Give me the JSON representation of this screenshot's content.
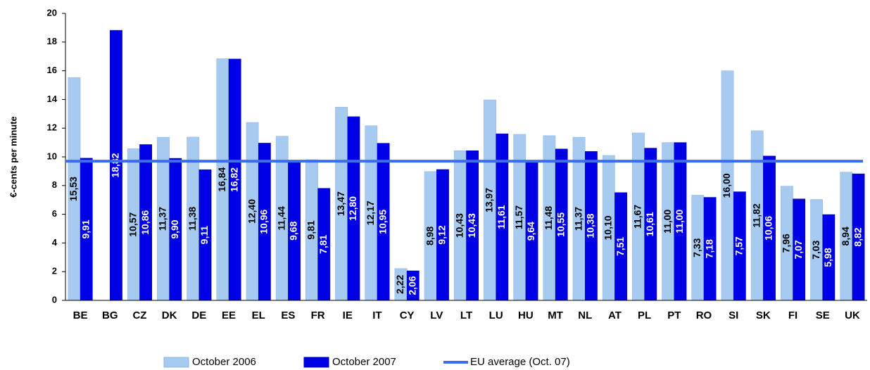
{
  "chart_data": {
    "type": "bar",
    "y_label": "€-cents per minute",
    "categories": [
      "BE",
      "BG",
      "CZ",
      "DK",
      "DE",
      "EE",
      "EL",
      "ES",
      "FR",
      "IE",
      "IT",
      "CY",
      "LV",
      "LT",
      "LU",
      "HU",
      "MT",
      "NL",
      "AT",
      "PL",
      "PT",
      "RO",
      "SI",
      "SK",
      "FI",
      "SE",
      "UK"
    ],
    "series": [
      {
        "name": "October 2006",
        "color": "#a6caf0",
        "values": [
          15.53,
          null,
          10.57,
          11.37,
          11.38,
          16.84,
          12.4,
          11.44,
          9.81,
          13.47,
          12.17,
          2.22,
          8.98,
          10.43,
          13.97,
          11.57,
          11.48,
          11.37,
          10.1,
          11.67,
          11.0,
          7.33,
          16.0,
          11.82,
          7.96,
          7.03,
          8.94
        ],
        "value_labels": [
          "15,53",
          null,
          "10,57",
          "11,37",
          "11,38",
          "16,84",
          "12,40",
          "11,44",
          "9,81",
          "13,47",
          "12,17",
          "2,22",
          "8,98",
          "10,43",
          "13,97",
          "11,57",
          "11,48",
          "11,37",
          "10,10",
          "11,67",
          "11,00",
          "7,33",
          "16,00",
          "11,82",
          "7,96",
          "7,03",
          "8,94"
        ]
      },
      {
        "name": "October 2007",
        "color": "#0000e6",
        "values": [
          9.91,
          18.82,
          10.86,
          9.9,
          9.11,
          16.82,
          10.96,
          9.68,
          7.81,
          12.8,
          10.95,
          2.06,
          9.12,
          10.43,
          11.61,
          9.64,
          10.55,
          10.38,
          7.51,
          10.61,
          11.0,
          7.18,
          7.57,
          10.06,
          7.07,
          5.98,
          8.82
        ],
        "value_labels": [
          "9,91",
          "18,82",
          "10,86",
          "9,90",
          "9,11",
          "16,82",
          "10,96",
          "9,68",
          "7,81",
          "12,80",
          "10,95",
          "2,06",
          "9,12",
          "10,43",
          "11,61",
          "9,64",
          "10,55",
          "10,38",
          "7,51",
          "10,61",
          "11,00",
          "7,18",
          "7,57",
          "10,06",
          "7,07",
          "5,98",
          "8,82"
        ]
      }
    ],
    "reference_line": {
      "name": "EU average (Oct. 07)",
      "color": "#3d6ef0",
      "value": 9.7
    },
    "ylim": [
      0,
      20
    ],
    "yticks": [
      0,
      2,
      4,
      6,
      8,
      10,
      12,
      14,
      16,
      18,
      20
    ],
    "grid": false
  }
}
